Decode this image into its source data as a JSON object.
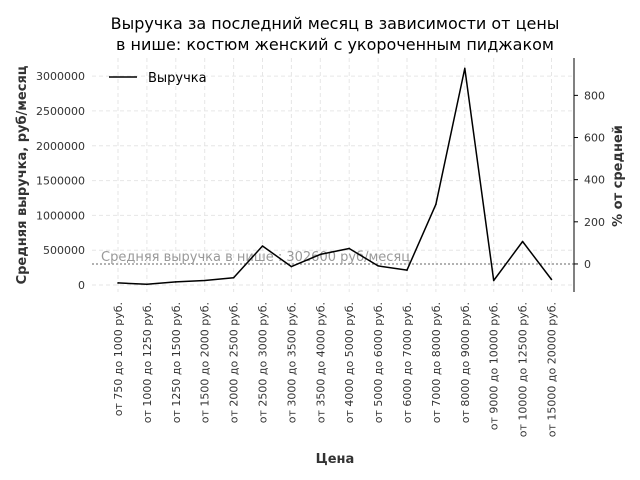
{
  "chart_data": {
    "type": "line",
    "title_lines": [
      "Выручка за последний месяц в зависимости от цены",
      "в нише: костюм женский с укороченным пиджаком"
    ],
    "xlabel": "Цена",
    "ylabel": "Средняя выручка, руб/месяц",
    "ylabel_right": "% от средней",
    "categories": [
      "от 750 до 1000 руб.",
      "от 1000 до 1250 руб.",
      "от 1250 до 1500 руб.",
      "от 1500 до 2000 руб.",
      "от 2000 до 2500 руб.",
      "от 2500 до 3000 руб.",
      "от 3000 до 3500 руб.",
      "от 3500 до 4000 руб.",
      "от 4000 до 5000 руб.",
      "от 5000 до 6000 руб.",
      "от 6000 до 7000 руб.",
      "от 7000 до 8000 руб.",
      "от 8000 до 9000 руб.",
      "от 9000 до 10000 руб.",
      "от 10000 до 12500 руб.",
      "от 15000 до 20000 руб."
    ],
    "series": [
      {
        "name": "Выручка",
        "color": "#000000",
        "values": [
          30000,
          10000,
          45000,
          65000,
          105000,
          560000,
          265000,
          440000,
          525000,
          275000,
          215000,
          1160000,
          3110000,
          65000,
          625000,
          80000
        ]
      }
    ],
    "reference_line": {
      "value": 302600,
      "label": "Средняя выручка в нише : 302600 руб/месяц",
      "color": "#999999"
    },
    "y_ticks": [
      0,
      500000,
      1000000,
      1500000,
      2000000,
      2500000,
      3000000
    ],
    "ylim": [
      -100000,
      3260000
    ],
    "y_right_ticks": [
      0,
      200,
      400,
      600,
      800
    ],
    "grid": true,
    "legend": "top-left"
  }
}
